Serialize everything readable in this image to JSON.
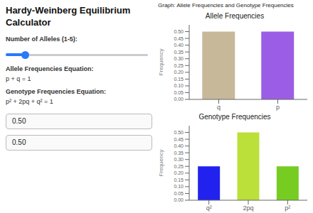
{
  "chart_data": [
    {
      "type": "bar",
      "title": "Allele Frequencies",
      "categories": [
        "q",
        "p"
      ],
      "values": [
        0.5,
        0.5
      ],
      "colors": [
        "#c8b89a",
        "#9b5de5"
      ],
      "y_label": "Frequency",
      "ylim": [
        0,
        0.55
      ],
      "yticks": [
        {
          "value": 0.0,
          "label": "0.00"
        },
        0.05,
        {
          "value": 0.1,
          "label": "0.10"
        },
        0.15,
        {
          "value": 0.2,
          "label": "0.20"
        },
        0.25,
        {
          "value": 0.3,
          "label": "0.30"
        },
        0.35,
        {
          "value": 0.4,
          "label": "0.40"
        },
        0.45,
        {
          "value": 0.5,
          "label": "0.50"
        }
      ],
      "grid": false,
      "annotations": [
        "Hardy-Weinberg Equilibrium",
        "Calculator",
        "Number of Alleles (1-5):",
        "Allele Frequencies Equation:",
        "p + q = 1",
        "Genotype Frequencies Equation:",
        "p² + 2pq + q² = 1",
        "0.50",
        "0.50",
        "Graph: Allele Frequencies and Genotype Frequencies"
      ]
    },
    {
      "type": "bar",
      "title": "Genotype Frequencies",
      "categories": [
        "q²",
        "2pq",
        "p²"
      ],
      "values": [
        0.25,
        0.5,
        0.25
      ],
      "colors": [
        "#2222ee",
        "#bbe03a",
        "#77cc22"
      ],
      "y_label": "Frequency",
      "ylim": [
        0,
        0.55
      ],
      "yticks": [
        {
          "value": 0.0,
          "label": "0.00"
        },
        0.05,
        {
          "value": 0.1,
          "label": "0.10"
        },
        0.15,
        {
          "value": 0.2,
          "label": "0.20"
        },
        0.25,
        {
          "value": 0.3,
          "label": "0.30"
        },
        0.35,
        {
          "value": 0.4,
          "label": "0.40"
        },
        0.45,
        {
          "value": 0.5,
          "label": "0.50"
        }
      ],
      "grid": false
    }
  ]
}
